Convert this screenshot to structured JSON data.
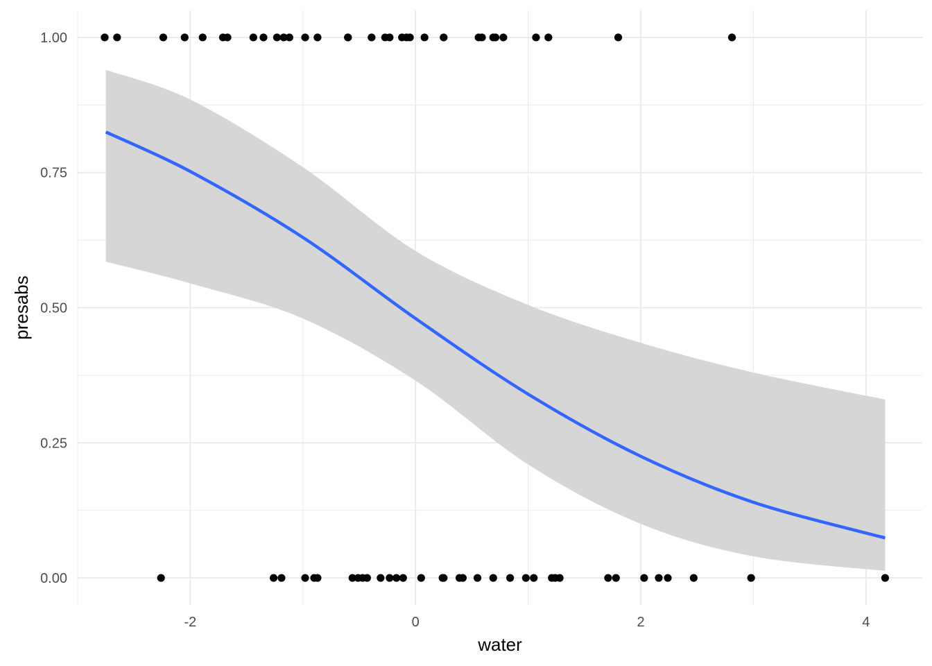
{
  "chart_data": {
    "type": "scatter",
    "xlabel": "water",
    "ylabel": "presabs",
    "xlim": [
      -3.0,
      4.5
    ],
    "ylim": [
      -0.05,
      1.05
    ],
    "x_ticks": [
      -2,
      0,
      2,
      4
    ],
    "x_tick_labels": [
      "-2",
      "0",
      "2",
      "4"
    ],
    "y_ticks": [
      0.0,
      0.25,
      0.5,
      0.75,
      1.0
    ],
    "y_tick_labels": [
      "0.00",
      "0.25",
      "0.50",
      "0.75",
      "1.00"
    ],
    "grid": true,
    "points_present": [
      -2.76,
      -2.65,
      -2.24,
      -2.05,
      -1.89,
      -1.71,
      -1.67,
      -1.44,
      -1.35,
      -1.23,
      -1.17,
      -1.12,
      -0.98,
      -0.87,
      -0.6,
      -0.6,
      -0.39,
      -0.27,
      -0.23,
      -0.12,
      -0.08,
      -0.05,
      0.08,
      0.25,
      0.56,
      0.59,
      0.69,
      0.71,
      0.78,
      1.07,
      1.18,
      1.8,
      2.81
    ],
    "points_absent": [
      -2.26,
      -1.26,
      -1.19,
      -0.98,
      -0.9,
      -0.87,
      -0.56,
      -0.51,
      -0.47,
      -0.43,
      -0.31,
      -0.23,
      -0.17,
      -0.11,
      0.05,
      0.24,
      0.25,
      0.39,
      0.42,
      0.55,
      0.69,
      0.84,
      0.98,
      1.05,
      1.21,
      1.24,
      1.28,
      1.71,
      1.78,
      2.03,
      2.16,
      2.24,
      2.47,
      2.98,
      4.17
    ],
    "fit_curve": {
      "x": [
        -2.75,
        -2.0,
        -1.0,
        0.0,
        1.0,
        2.0,
        3.0,
        4.17
      ],
      "y": [
        0.825,
        0.752,
        0.63,
        0.48,
        0.34,
        0.225,
        0.14,
        0.074
      ],
      "color": "#3366ff"
    },
    "ci_band": {
      "x": [
        -2.75,
        -2.0,
        -1.0,
        0.0,
        1.0,
        2.0,
        3.0,
        4.17
      ],
      "lower": [
        0.585,
        0.545,
        0.48,
        0.365,
        0.21,
        0.1,
        0.04,
        0.013
      ],
      "upper": [
        0.94,
        0.885,
        0.76,
        0.605,
        0.505,
        0.435,
        0.38,
        0.33
      ],
      "color": "#d6d6d6"
    },
    "point_color": "#000000"
  }
}
